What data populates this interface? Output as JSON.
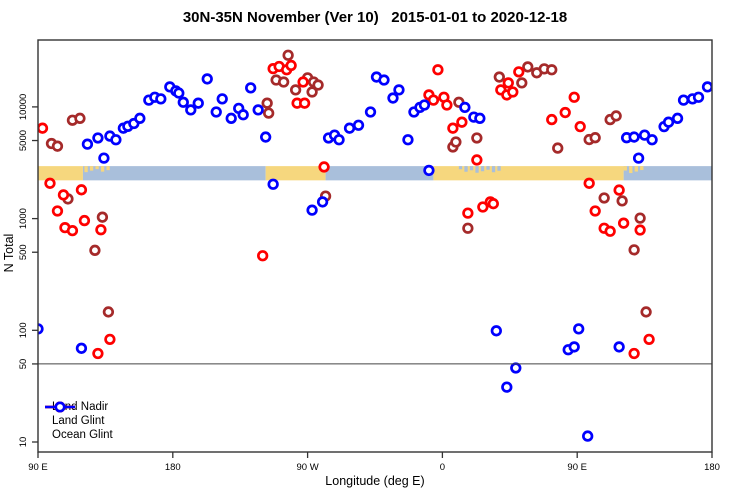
{
  "title": "30N-35N November (Ver 10)   2015-01-01 to 2020-12-18",
  "chart_data": {
    "type": "scatter",
    "title": "30N-35N November (Ver 10)   2015-01-01 to 2020-12-18",
    "xlabel": "Longitude (deg E)",
    "ylabel": "N Total",
    "x_axis": {
      "range_deg": [
        90,
        540
      ],
      "ticks": [
        {
          "pos": 90,
          "label": "90 E"
        },
        {
          "pos": 180,
          "label": "180"
        },
        {
          "pos": 270,
          "label": "90 W"
        },
        {
          "pos": 360,
          "label": "0"
        },
        {
          "pos": 450,
          "label": "90 E"
        },
        {
          "pos": 540,
          "label": "180"
        }
      ]
    },
    "y_axis": {
      "scale": "log10",
      "range": [
        7,
        40000
      ],
      "ticks": [
        {
          "value": 10,
          "label": "10"
        },
        {
          "value": 50,
          "label": "50"
        },
        {
          "value": 100,
          "label": "100"
        },
        {
          "value": 500,
          "label": "500"
        },
        {
          "value": 1000,
          "label": "1000"
        },
        {
          "value": 5000,
          "label": "5000"
        },
        {
          "value": 10000,
          "label": "10000"
        }
      ]
    },
    "reference_line_value": 50,
    "surface_band": {
      "value_top": 2950,
      "value_bottom": 2200,
      "land_color": "#F6D77E",
      "ocean_color": "#A9BFDB",
      "segments": [
        {
          "surface": "land",
          "from": 90,
          "to": 120
        },
        {
          "surface": "ocean",
          "from": 120,
          "to": 242
        },
        {
          "surface": "land",
          "from": 242,
          "to": 282
        },
        {
          "surface": "ocean",
          "from": 282,
          "to": 354
        },
        {
          "surface": "land",
          "from": 354,
          "to": 481
        },
        {
          "surface": "ocean",
          "from": 481,
          "to": 540
        }
      ],
      "fragments": [
        {
          "surface": "land",
          "from": 121,
          "to": 138
        },
        {
          "surface": "ocean",
          "from": 371,
          "to": 399
        },
        {
          "surface": "land",
          "from": 481,
          "to": 493
        }
      ]
    },
    "legend": [
      {
        "label": "Land Nadir",
        "color": "#A52A2A"
      },
      {
        "label": "Land Glint",
        "color": "#FE0000"
      },
      {
        "label": "Ocean Glint",
        "color": "#0000FE"
      }
    ],
    "series": [
      {
        "name": "Land Nadir",
        "color": "#A52A2A",
        "points": [
          [
            99,
            4700
          ],
          [
            103,
            4450
          ],
          [
            110,
            1500
          ],
          [
            113,
            7600
          ],
          [
            118,
            7900
          ],
          [
            128,
            520
          ],
          [
            133,
            1030
          ],
          [
            137,
            146
          ],
          [
            243,
            10800
          ],
          [
            244,
            8800
          ],
          [
            249,
            17400
          ],
          [
            254,
            16700
          ],
          [
            257,
            29000
          ],
          [
            262,
            14200
          ],
          [
            270,
            18200
          ],
          [
            273,
            13600
          ],
          [
            274,
            16700
          ],
          [
            277,
            15700
          ],
          [
            282,
            1590
          ],
          [
            367,
            4380
          ],
          [
            369,
            4850
          ],
          [
            371,
            11000
          ],
          [
            377,
            820
          ],
          [
            383,
            5270
          ],
          [
            398,
            18500
          ],
          [
            413,
            16400
          ],
          [
            417,
            22800
          ],
          [
            423,
            20200
          ],
          [
            428,
            21900
          ],
          [
            433,
            21500
          ],
          [
            437,
            4280
          ],
          [
            458,
            5100
          ],
          [
            462,
            5300
          ],
          [
            468,
            1530
          ],
          [
            472,
            7700
          ],
          [
            476,
            8300
          ],
          [
            480,
            1440
          ],
          [
            488,
            525
          ],
          [
            492,
            1010
          ],
          [
            496,
            146
          ]
        ]
      },
      {
        "name": "Land Glint",
        "color": "#FE0000",
        "points": [
          [
            93,
            6450
          ],
          [
            98,
            2070
          ],
          [
            103,
            1170
          ],
          [
            107,
            1630
          ],
          [
            108,
            830
          ],
          [
            113,
            780
          ],
          [
            119,
            1810
          ],
          [
            121,
            960
          ],
          [
            130,
            62
          ],
          [
            132,
            795
          ],
          [
            138,
            83
          ],
          [
            240,
            465
          ],
          [
            247,
            22000
          ],
          [
            251,
            23000
          ],
          [
            256,
            21500
          ],
          [
            259,
            23500
          ],
          [
            263,
            10800
          ],
          [
            267,
            16700
          ],
          [
            268,
            10800
          ],
          [
            281,
            2900
          ],
          [
            351,
            12800
          ],
          [
            354,
            11500
          ],
          [
            357,
            21500
          ],
          [
            361,
            12200
          ],
          [
            363,
            10400
          ],
          [
            367,
            6450
          ],
          [
            373,
            7300
          ],
          [
            377,
            1120
          ],
          [
            383,
            3350
          ],
          [
            387,
            1270
          ],
          [
            392,
            1410
          ],
          [
            394,
            1360
          ],
          [
            399,
            14200
          ],
          [
            403,
            12800
          ],
          [
            404,
            16400
          ],
          [
            407,
            13600
          ],
          [
            411,
            20600
          ],
          [
            433,
            7700
          ],
          [
            442,
            8900
          ],
          [
            448,
            12200
          ],
          [
            452,
            6660
          ],
          [
            458,
            2070
          ],
          [
            462,
            1170
          ],
          [
            468,
            820
          ],
          [
            472,
            770
          ],
          [
            478,
            1800
          ],
          [
            481,
            910
          ],
          [
            488,
            62
          ],
          [
            492,
            790
          ],
          [
            498,
            83
          ]
        ]
      },
      {
        "name": "Ocean Glint",
        "color": "#0000FE",
        "points": [
          [
            90,
            103
          ],
          [
            119,
            69
          ],
          [
            123,
            4640
          ],
          [
            130,
            5270
          ],
          [
            134,
            3480
          ],
          [
            138,
            5480
          ],
          [
            142,
            5080
          ],
          [
            147,
            6450
          ],
          [
            150,
            6700
          ],
          [
            154,
            7100
          ],
          [
            158,
            7900
          ],
          [
            164,
            11500
          ],
          [
            168,
            12200
          ],
          [
            172,
            11800
          ],
          [
            178,
            15100
          ],
          [
            182,
            13900
          ],
          [
            184,
            13300
          ],
          [
            187,
            11000
          ],
          [
            192,
            9400
          ],
          [
            197,
            10800
          ],
          [
            203,
            17800
          ],
          [
            209,
            9000
          ],
          [
            213,
            11800
          ],
          [
            219,
            7900
          ],
          [
            224,
            9700
          ],
          [
            227,
            8500
          ],
          [
            232,
            14800
          ],
          [
            237,
            9400
          ],
          [
            242,
            5370
          ],
          [
            247,
            2030
          ],
          [
            273,
            1190
          ],
          [
            280,
            1410
          ],
          [
            284,
            5270
          ],
          [
            288,
            5590
          ],
          [
            291,
            5080
          ],
          [
            298,
            6450
          ],
          [
            304,
            6850
          ],
          [
            312,
            9000
          ],
          [
            316,
            18500
          ],
          [
            321,
            17400
          ],
          [
            327,
            12000
          ],
          [
            331,
            14200
          ],
          [
            337,
            5080
          ],
          [
            341,
            9000
          ],
          [
            345,
            9900
          ],
          [
            348,
            10400
          ],
          [
            351,
            2700
          ],
          [
            375,
            9900
          ],
          [
            381,
            8100
          ],
          [
            385,
            7900
          ],
          [
            396,
            99
          ],
          [
            403,
            31
          ],
          [
            409,
            46
          ],
          [
            444,
            67
          ],
          [
            448,
            71
          ],
          [
            451,
            103
          ],
          [
            457,
            11.3
          ],
          [
            478,
            71
          ],
          [
            483,
            5300
          ],
          [
            488,
            5370
          ],
          [
            491,
            3480
          ],
          [
            495,
            5590
          ],
          [
            500,
            5080
          ],
          [
            508,
            6660
          ],
          [
            511,
            7300
          ],
          [
            517,
            7900
          ],
          [
            521,
            11500
          ],
          [
            527,
            11800
          ],
          [
            531,
            12200
          ],
          [
            537,
            15100
          ]
        ]
      }
    ]
  }
}
